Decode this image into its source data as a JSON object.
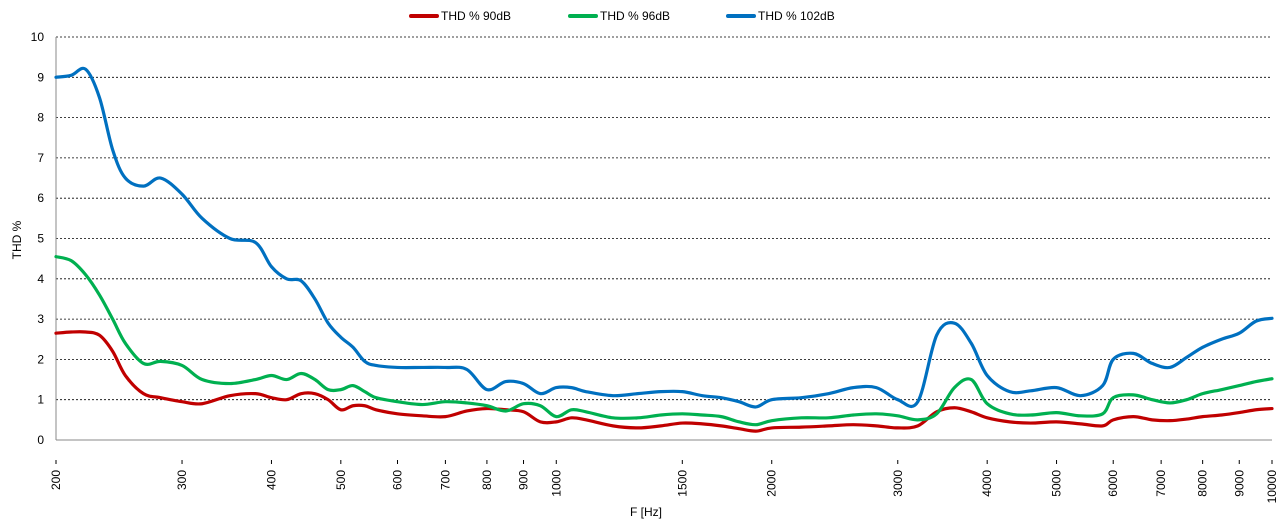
{
  "chart_data": {
    "type": "line",
    "xlabel": "F [Hz]",
    "ylabel": "THD %",
    "x_scale": "log",
    "xlim": [
      200,
      10000
    ],
    "ylim": [
      0,
      10
    ],
    "y_ticks": [
      0,
      1,
      2,
      3,
      4,
      5,
      6,
      7,
      8,
      9,
      10
    ],
    "x_ticks": [
      200,
      300,
      400,
      500,
      600,
      700,
      800,
      900,
      1000,
      1500,
      2000,
      3000,
      4000,
      5000,
      6000,
      7000,
      8000,
      9000,
      10000
    ],
    "grid": "horizontal dashed",
    "legend_position": "top",
    "series": [
      {
        "name": "THD % 90dB",
        "color": "#C00000",
        "x": [
          200,
          210,
          220,
          230,
          240,
          250,
          265,
          280,
          300,
          320,
          350,
          380,
          400,
          420,
          440,
          460,
          480,
          500,
          520,
          540,
          560,
          600,
          650,
          700,
          750,
          800,
          850,
          900,
          950,
          1000,
          1050,
          1100,
          1200,
          1300,
          1400,
          1500,
          1600,
          1700,
          1800,
          1900,
          2000,
          2200,
          2400,
          2600,
          2800,
          3000,
          3200,
          3400,
          3600,
          3800,
          4000,
          4300,
          4600,
          5000,
          5400,
          5800,
          6000,
          6400,
          6800,
          7200,
          7600,
          8000,
          8500,
          9000,
          9500,
          10000
        ],
        "values": [
          2.65,
          2.68,
          2.68,
          2.6,
          2.2,
          1.6,
          1.15,
          1.05,
          0.95,
          0.9,
          1.1,
          1.15,
          1.05,
          1.0,
          1.15,
          1.15,
          1.0,
          0.75,
          0.85,
          0.85,
          0.75,
          0.65,
          0.6,
          0.58,
          0.72,
          0.78,
          0.75,
          0.7,
          0.45,
          0.45,
          0.55,
          0.5,
          0.35,
          0.3,
          0.35,
          0.42,
          0.4,
          0.35,
          0.28,
          0.22,
          0.3,
          0.32,
          0.35,
          0.38,
          0.35,
          0.3,
          0.35,
          0.7,
          0.8,
          0.7,
          0.55,
          0.45,
          0.42,
          0.45,
          0.4,
          0.35,
          0.5,
          0.58,
          0.5,
          0.48,
          0.52,
          0.58,
          0.62,
          0.68,
          0.75,
          0.78
        ]
      },
      {
        "name": "THD % 96dB",
        "color": "#00B050",
        "x": [
          200,
          210,
          220,
          230,
          240,
          250,
          265,
          280,
          300,
          320,
          350,
          380,
          400,
          420,
          440,
          460,
          480,
          500,
          520,
          540,
          560,
          600,
          650,
          700,
          750,
          800,
          850,
          900,
          950,
          1000,
          1050,
          1100,
          1200,
          1300,
          1400,
          1500,
          1600,
          1700,
          1800,
          1900,
          2000,
          2200,
          2400,
          2600,
          2800,
          3000,
          3200,
          3400,
          3600,
          3800,
          4000,
          4300,
          4600,
          5000,
          5400,
          5800,
          6000,
          6400,
          6800,
          7200,
          7600,
          8000,
          8500,
          9000,
          9500,
          10000
        ],
        "values": [
          4.55,
          4.45,
          4.1,
          3.6,
          3.0,
          2.4,
          1.9,
          1.95,
          1.85,
          1.5,
          1.4,
          1.5,
          1.6,
          1.5,
          1.65,
          1.5,
          1.25,
          1.25,
          1.35,
          1.2,
          1.05,
          0.95,
          0.88,
          0.95,
          0.92,
          0.85,
          0.72,
          0.9,
          0.85,
          0.58,
          0.75,
          0.7,
          0.55,
          0.55,
          0.62,
          0.65,
          0.62,
          0.58,
          0.45,
          0.38,
          0.48,
          0.55,
          0.55,
          0.62,
          0.65,
          0.6,
          0.5,
          0.65,
          1.3,
          1.5,
          0.9,
          0.65,
          0.62,
          0.68,
          0.6,
          0.65,
          1.05,
          1.12,
          1.0,
          0.92,
          1.0,
          1.15,
          1.25,
          1.35,
          1.45,
          1.52
        ]
      },
      {
        "name": "THD % 102dB",
        "color": "#0070C0",
        "x": [
          200,
          210,
          220,
          230,
          240,
          250,
          265,
          280,
          300,
          320,
          350,
          380,
          400,
          420,
          440,
          460,
          480,
          500,
          520,
          540,
          560,
          600,
          650,
          700,
          750,
          800,
          850,
          900,
          950,
          1000,
          1050,
          1100,
          1200,
          1300,
          1400,
          1500,
          1600,
          1700,
          1800,
          1900,
          2000,
          2200,
          2400,
          2600,
          2800,
          3000,
          3200,
          3400,
          3600,
          3800,
          4000,
          4300,
          4600,
          5000,
          5400,
          5800,
          6000,
          6400,
          6800,
          7200,
          7600,
          8000,
          8500,
          9000,
          9500,
          10000
        ],
        "values": [
          9.0,
          9.05,
          9.2,
          8.5,
          7.2,
          6.5,
          6.3,
          6.5,
          6.1,
          5.5,
          5.0,
          4.9,
          4.3,
          4.0,
          3.95,
          3.5,
          2.9,
          2.55,
          2.3,
          1.95,
          1.85,
          1.8,
          1.8,
          1.8,
          1.75,
          1.25,
          1.45,
          1.4,
          1.15,
          1.3,
          1.3,
          1.2,
          1.1,
          1.15,
          1.2,
          1.2,
          1.1,
          1.05,
          0.95,
          0.82,
          1.0,
          1.05,
          1.15,
          1.3,
          1.3,
          1.0,
          0.95,
          2.6,
          2.9,
          2.4,
          1.6,
          1.2,
          1.22,
          1.3,
          1.1,
          1.35,
          2.0,
          2.15,
          1.9,
          1.8,
          2.05,
          2.3,
          2.5,
          2.65,
          2.95,
          3.02
        ]
      }
    ]
  }
}
